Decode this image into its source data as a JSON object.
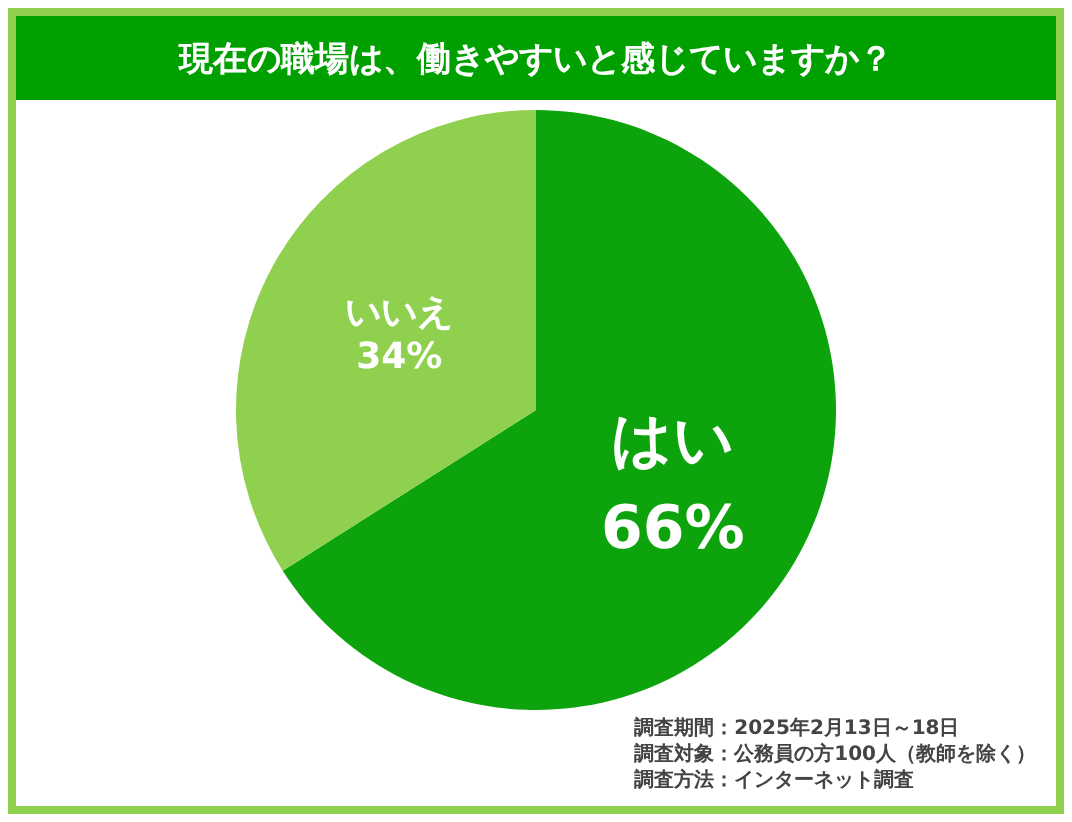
{
  "chart_data": {
    "type": "pie",
    "title": "現在の職場は、働きやすいと感じていますか？",
    "categories": [
      "はい",
      "いいえ"
    ],
    "values": [
      66,
      34
    ],
    "colors": [
      "#0ca30c",
      "#8fd14f"
    ],
    "value_labels": [
      "66%",
      "34%"
    ],
    "legend": false,
    "annotations": [
      "調査期間：2025年2月13日～18日",
      "調査対象：公務員の方100人（教師を除く）",
      "調査方法：インターネット調査"
    ]
  }
}
